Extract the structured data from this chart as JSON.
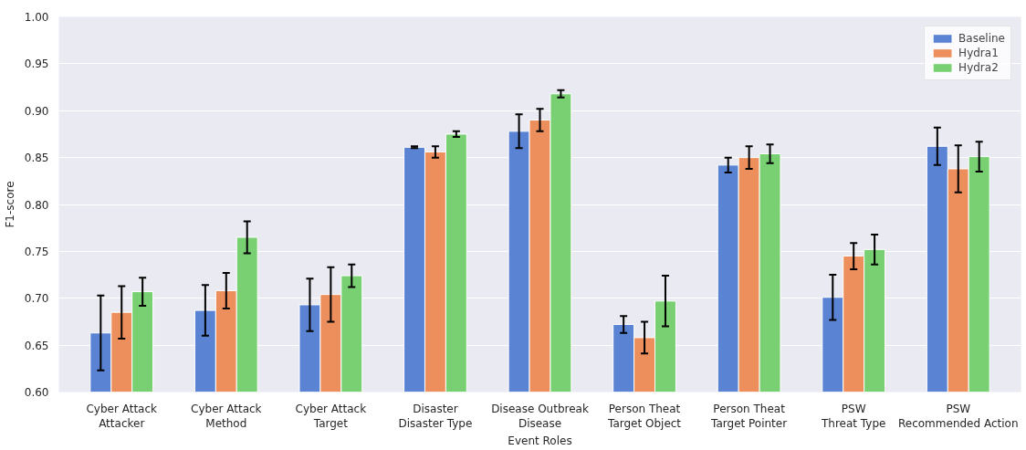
{
  "chart_data": {
    "type": "bar",
    "xlabel": "Event Roles",
    "ylabel": "F1-score",
    "categories": [
      "Cyber Attack\nAttacker",
      "Cyber Attack\nMethod",
      "Cyber Attack\nTarget",
      "Disaster\nDisaster Type",
      "Disease Outbreak\nDisease",
      "Person Theat\nTarget Object",
      "Person Theat\nTarget Pointer",
      "PSW\nThreat Type",
      "PSW\nRecommended Action"
    ],
    "series": [
      {
        "name": "Baseline",
        "color": "#5a84d3",
        "values": [
          0.663,
          0.687,
          0.693,
          0.861,
          0.878,
          0.672,
          0.842,
          0.701,
          0.862
        ],
        "errors": [
          0.04,
          0.027,
          0.028,
          0.001,
          0.018,
          0.009,
          0.008,
          0.024,
          0.02
        ]
      },
      {
        "name": "Hydra1",
        "color": "#ec8f5c",
        "values": [
          0.685,
          0.708,
          0.704,
          0.856,
          0.89,
          0.658,
          0.85,
          0.745,
          0.838
        ],
        "errors": [
          0.028,
          0.019,
          0.029,
          0.006,
          0.012,
          0.017,
          0.012,
          0.014,
          0.025
        ]
      },
      {
        "name": "Hydra2",
        "color": "#78d073",
        "values": [
          0.707,
          0.765,
          0.724,
          0.875,
          0.918,
          0.697,
          0.854,
          0.752,
          0.851
        ],
        "errors": [
          0.015,
          0.017,
          0.012,
          0.003,
          0.004,
          0.027,
          0.01,
          0.016,
          0.016
        ]
      }
    ],
    "ylim": [
      0.6,
      1.0
    ],
    "yticks": [
      {
        "value": 0.6,
        "label": "0.60"
      },
      {
        "value": 0.65,
        "label": "0.65"
      },
      {
        "value": 0.7,
        "label": "0.70"
      },
      {
        "value": 0.75,
        "label": "0.75"
      },
      {
        "value": 0.8,
        "label": "0.80"
      },
      {
        "value": 0.85,
        "label": "0.85"
      },
      {
        "value": 0.9,
        "label": "0.90"
      },
      {
        "value": 0.95,
        "label": "0.95"
      },
      {
        "value": 1.0,
        "label": "1.00"
      }
    ],
    "grid": "y",
    "legend": "top right"
  }
}
